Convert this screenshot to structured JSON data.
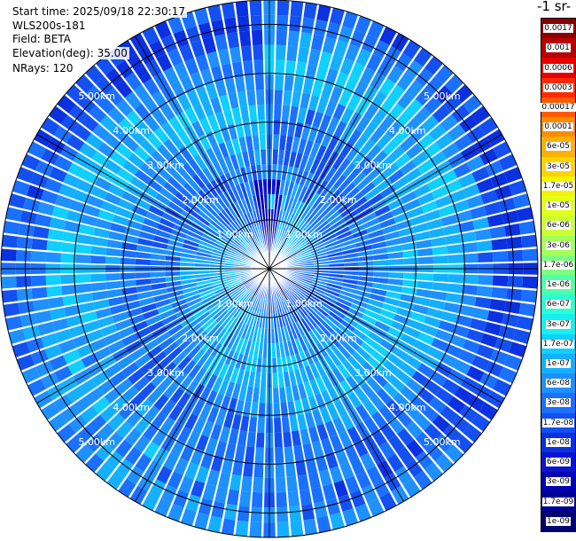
{
  "info": {
    "start_time": "Start time: 2025/09/18 22:30:17",
    "instrument": "WLS200s-181",
    "field": "Field: BETA",
    "elevation": "Elevation(deg): 35.00",
    "nrays": "NRays: 120"
  },
  "colorbar": {
    "title": "-1 sr-",
    "labels": [
      "0.0017",
      "0.001",
      "0.0006",
      "0.0003",
      "0.00017",
      "0.0001",
      "6e-05",
      "3e-05",
      "1.7e-05",
      "1e-05",
      "6e-06",
      "3e-06",
      "1.7e-06",
      "1e-06",
      "6e-07",
      "3e-07",
      "1.7e-07",
      "1e-07",
      "6e-08",
      "3e-08",
      "1.7e-08",
      "1e-08",
      "6e-09",
      "3e-09",
      "1.7e-09",
      "1e-09"
    ],
    "colors": [
      "#8a0000",
      "#b80000",
      "#e60000",
      "#ff2a00",
      "#ff5a00",
      "#ff8a00",
      "#ffb000",
      "#ffd400",
      "#f4f400",
      "#e4ff1a",
      "#ccff33",
      "#a4ff5a",
      "#7cff82",
      "#50ffab",
      "#2affd4",
      "#14f0f0",
      "#0fd0ff",
      "#14b0ff",
      "#1e90ff",
      "#1a70ff",
      "#1450f0",
      "#0a30e0",
      "#0a14d0",
      "#0000b0",
      "#000090",
      "#000070"
    ]
  },
  "chart_data": {
    "type": "heatmap",
    "projection": "polar PPI",
    "field": "BETA",
    "elevation_deg": 35.0,
    "n_rays": 120,
    "range_unit": "km",
    "range_max_km": 5.5,
    "range_rings_km": [
      1.0,
      2.0,
      3.0,
      4.0,
      5.0
    ],
    "ring_labels": [
      "1.00km",
      "2.00km",
      "3.00km",
      "4.00km",
      "5.00km"
    ],
    "spoke_angles_deg": [
      0,
      30,
      60,
      90,
      120,
      150,
      180,
      210,
      240,
      270,
      300,
      330
    ],
    "color_scale": "log",
    "value_range": [
      1e-09,
      0.0017
    ],
    "dominant_value_range": [
      1e-08,
      1.7e-07
    ],
    "near_range_enhancement": {
      "azimuth_deg": 0,
      "max_range_km": 2.0,
      "approx_value": 3e-09
    }
  }
}
